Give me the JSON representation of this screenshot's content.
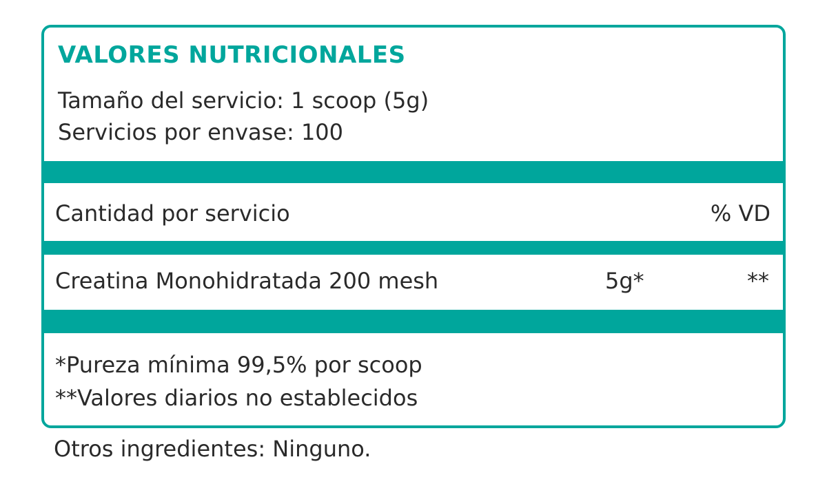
{
  "label": {
    "title": "VALORES NUTRICIONALES",
    "serving_size": "Tamaño del servicio: 1 scoop (5g)",
    "servings_per_container": "Servicios por envase: 100",
    "header_amount": "Cantidad por servicio",
    "header_dv": "% VD",
    "rows": [
      {
        "name": "Creatina Monohidratada 200 mesh",
        "amount": "5g*",
        "dv": "**"
      }
    ],
    "footnotes": [
      "*Pureza mínima 99,5% por scoop",
      "**Valores diarios no establecidos"
    ]
  },
  "other_ingredients": "Otros ingredientes: Ninguno.",
  "colors": {
    "accent": "#00a69c",
    "text": "#2a2a2a"
  }
}
